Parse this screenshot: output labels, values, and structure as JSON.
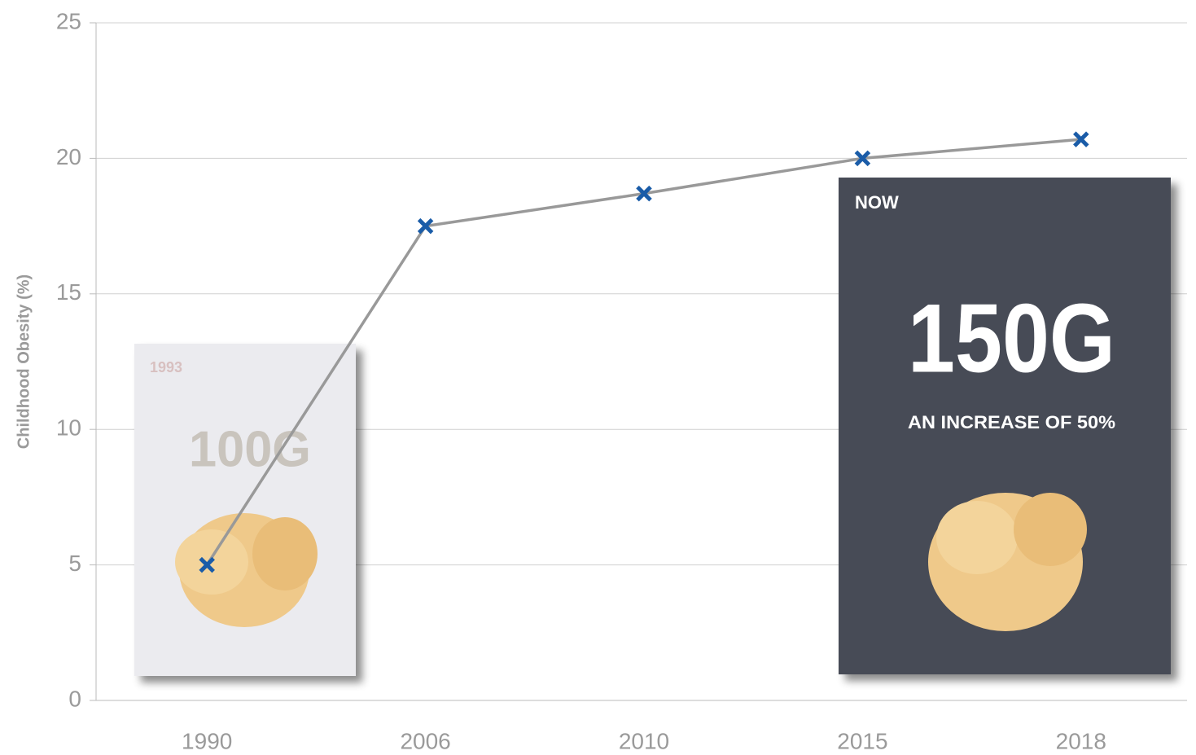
{
  "chart_data": {
    "type": "line",
    "y_label": "Childhood Obesity (%)",
    "categories": [
      "1990",
      "2006",
      "2010",
      "2015",
      "2018"
    ],
    "series": [
      {
        "values": [
          5,
          17.5,
          18.7,
          20,
          20.7
        ],
        "color": "#999999",
        "marker_color": "#1a5ca8"
      }
    ],
    "ylim": [
      0,
      25
    ],
    "yticks": [
      0,
      5,
      10,
      15,
      20,
      25
    ],
    "grid": true,
    "annotations": {
      "old_bag_year": "1993",
      "old_bag_weight": "100G",
      "new_bag_tag": "NOW",
      "new_bag_weight": "150G",
      "new_bag_note": "AN INCREASE OF 50%"
    }
  }
}
